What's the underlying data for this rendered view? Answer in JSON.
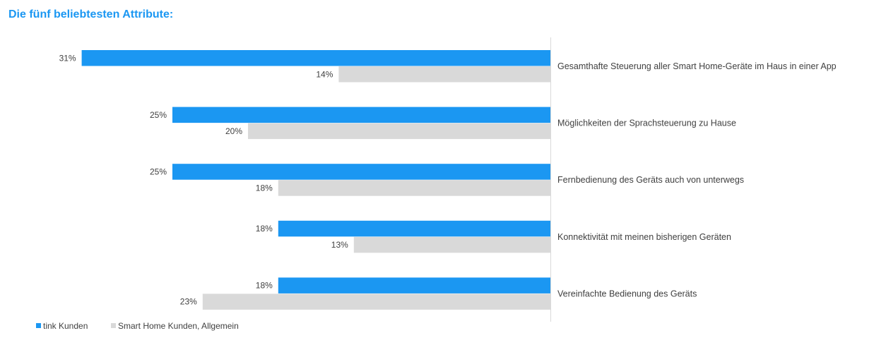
{
  "colors": {
    "title": "#1b97f2",
    "axis": "#d9d9d9",
    "text": "#404040"
  },
  "chart_data": {
    "type": "bar",
    "orientation": "horizontal",
    "title": "Die fünf beliebtesten Attribute:",
    "categories": [
      "Gesamthafte Steuerung aller Smart Home-Geräte im Haus in einer App",
      "Möglichkeiten der Sprachsteuerung zu Hause",
      "Fernbedienung des Geräts auch von unterwegs",
      "Konnektivität mit meinen bisherigen Geräten",
      "Vereinfachte Bedienung des Geräts"
    ],
    "series": [
      {
        "name": "tink Kunden",
        "color": "#1b97f2",
        "values": [
          31,
          25,
          25,
          18,
          18
        ],
        "value_labels": [
          "31%",
          "25%",
          "25%",
          "18%",
          "18%"
        ]
      },
      {
        "name": "Smart Home Kunden, Allgemein",
        "color": "#d9d9d9",
        "values": [
          14,
          20,
          18,
          13,
          23
        ],
        "value_labels": [
          "14%",
          "20%",
          "18%",
          "13%",
          "23%"
        ]
      }
    ],
    "xlim": [
      0,
      31
    ],
    "grid": false,
    "legend_position": "bottom-left",
    "bars_extend": "leftward from category axis"
  }
}
